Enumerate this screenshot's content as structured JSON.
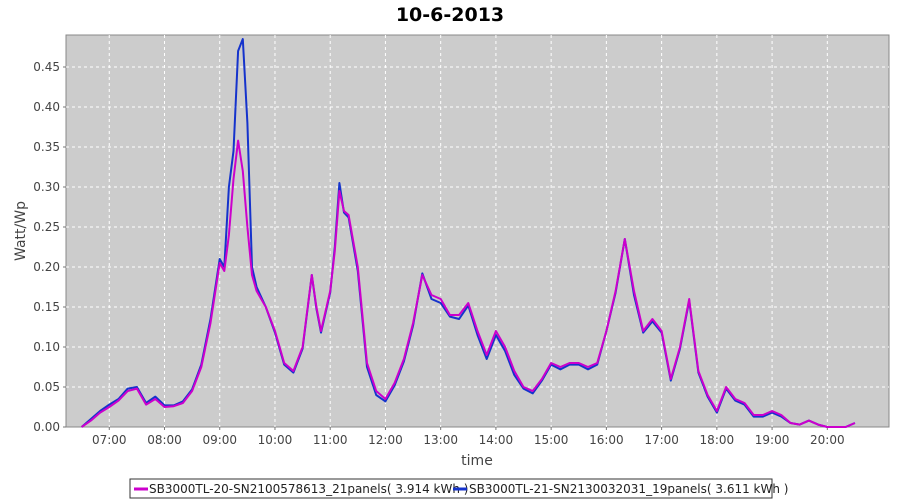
{
  "chart_data": {
    "type": "line",
    "title": "10-6-2013",
    "xlabel": "time",
    "ylabel": "Watt/Wp",
    "x_ticks": [
      "07:00",
      "08:00",
      "09:00",
      "10:00",
      "11:00",
      "12:00",
      "13:00",
      "14:00",
      "15:00",
      "16:00",
      "17:00",
      "18:00",
      "19:00",
      "20:00"
    ],
    "y_ticks": [
      "0.00",
      "0.05",
      "0.10",
      "0.15",
      "0.20",
      "0.25",
      "0.30",
      "0.35",
      "0.40",
      "0.45"
    ],
    "xlim": [
      "06:13",
      "21:07"
    ],
    "ylim": [
      0,
      0.49
    ],
    "grid": true,
    "legend_position": "bottom",
    "series": [
      {
        "name": "SB3000TL-20-SN2100578613_21panels( 3.914 kWh )",
        "color": "#cc00cc",
        "x": [
          "06:30",
          "06:40",
          "06:50",
          "07:00",
          "07:10",
          "07:20",
          "07:30",
          "07:40",
          "07:50",
          "08:00",
          "08:10",
          "08:20",
          "08:30",
          "08:40",
          "08:50",
          "09:00",
          "09:05",
          "09:10",
          "09:15",
          "09:20",
          "09:25",
          "09:30",
          "09:35",
          "09:40",
          "09:50",
          "10:00",
          "10:10",
          "10:20",
          "10:30",
          "10:40",
          "10:45",
          "10:50",
          "11:00",
          "11:05",
          "11:10",
          "11:15",
          "11:20",
          "11:30",
          "11:40",
          "11:50",
          "12:00",
          "12:10",
          "12:20",
          "12:30",
          "12:40",
          "12:50",
          "13:00",
          "13:10",
          "13:20",
          "13:30",
          "13:40",
          "13:50",
          "14:00",
          "14:10",
          "14:20",
          "14:30",
          "14:40",
          "14:50",
          "15:00",
          "15:10",
          "15:20",
          "15:30",
          "15:40",
          "15:50",
          "16:00",
          "16:10",
          "16:20",
          "16:30",
          "16:40",
          "16:50",
          "17:00",
          "17:10",
          "17:20",
          "17:30",
          "17:40",
          "17:50",
          "18:00",
          "18:10",
          "18:20",
          "18:30",
          "18:40",
          "18:50",
          "19:00",
          "19:10",
          "19:20",
          "19:30",
          "19:40",
          "19:50",
          "20:00",
          "20:10",
          "20:20",
          "20:30"
        ],
        "y": [
          0.0,
          0.008,
          0.018,
          0.025,
          0.033,
          0.045,
          0.048,
          0.028,
          0.035,
          0.025,
          0.026,
          0.03,
          0.045,
          0.075,
          0.13,
          0.205,
          0.195,
          0.24,
          0.31,
          0.358,
          0.32,
          0.25,
          0.19,
          0.17,
          0.15,
          0.12,
          0.08,
          0.07,
          0.1,
          0.19,
          0.15,
          0.12,
          0.17,
          0.22,
          0.295,
          0.27,
          0.265,
          0.2,
          0.08,
          0.045,
          0.035,
          0.055,
          0.085,
          0.13,
          0.19,
          0.165,
          0.16,
          0.14,
          0.14,
          0.155,
          0.12,
          0.09,
          0.12,
          0.1,
          0.07,
          0.05,
          0.045,
          0.06,
          0.08,
          0.075,
          0.08,
          0.08,
          0.075,
          0.08,
          0.12,
          0.17,
          0.235,
          0.17,
          0.12,
          0.135,
          0.12,
          0.06,
          0.1,
          0.16,
          0.07,
          0.04,
          0.02,
          0.05,
          0.035,
          0.03,
          0.015,
          0.015,
          0.02,
          0.015,
          0.005,
          0.003,
          0.008,
          0.003,
          0.0,
          0.0,
          0.0,
          0.005
        ]
      },
      {
        "name": "SB3000TL-21-SN2130032031_19panels( 3.611 kWh )",
        "color": "#1533cc",
        "x": [
          "06:30",
          "06:40",
          "06:50",
          "07:00",
          "07:10",
          "07:20",
          "07:30",
          "07:40",
          "07:50",
          "08:00",
          "08:10",
          "08:20",
          "08:30",
          "08:40",
          "08:50",
          "09:00",
          "09:05",
          "09:10",
          "09:15",
          "09:20",
          "09:25",
          "09:30",
          "09:35",
          "09:40",
          "09:50",
          "10:00",
          "10:10",
          "10:20",
          "10:30",
          "10:40",
          "10:45",
          "10:50",
          "11:00",
          "11:05",
          "11:10",
          "11:15",
          "11:20",
          "11:30",
          "11:40",
          "11:50",
          "12:00",
          "12:10",
          "12:20",
          "12:30",
          "12:40",
          "12:50",
          "13:00",
          "13:10",
          "13:20",
          "13:30",
          "13:40",
          "13:50",
          "14:00",
          "14:10",
          "14:20",
          "14:30",
          "14:40",
          "14:50",
          "15:00",
          "15:10",
          "15:20",
          "15:30",
          "15:40",
          "15:50",
          "16:00",
          "16:10",
          "16:20",
          "16:30",
          "16:40",
          "16:50",
          "17:00",
          "17:10",
          "17:20",
          "17:30",
          "17:40",
          "17:50",
          "18:00",
          "18:10",
          "18:20",
          "18:30",
          "18:40",
          "18:50",
          "19:00",
          "19:10",
          "19:20",
          "19:30",
          "19:40",
          "19:50",
          "20:00",
          "20:10",
          "20:20",
          "20:30"
        ],
        "y": [
          0.0,
          0.01,
          0.02,
          0.028,
          0.035,
          0.048,
          0.05,
          0.03,
          0.038,
          0.027,
          0.027,
          0.032,
          0.047,
          0.078,
          0.135,
          0.21,
          0.2,
          0.3,
          0.345,
          0.47,
          0.485,
          0.38,
          0.2,
          0.175,
          0.15,
          0.118,
          0.078,
          0.068,
          0.098,
          0.19,
          0.148,
          0.118,
          0.168,
          0.225,
          0.305,
          0.268,
          0.262,
          0.195,
          0.075,
          0.04,
          0.032,
          0.052,
          0.082,
          0.127,
          0.192,
          0.16,
          0.155,
          0.138,
          0.135,
          0.152,
          0.115,
          0.085,
          0.115,
          0.095,
          0.065,
          0.048,
          0.042,
          0.058,
          0.078,
          0.072,
          0.078,
          0.078,
          0.072,
          0.078,
          0.12,
          0.168,
          0.235,
          0.165,
          0.118,
          0.132,
          0.118,
          0.058,
          0.098,
          0.158,
          0.068,
          0.038,
          0.018,
          0.048,
          0.033,
          0.028,
          0.013,
          0.013,
          0.018,
          0.013,
          0.005,
          0.003,
          0.008,
          0.003,
          0.0,
          0.0,
          0.0,
          0.005
        ]
      }
    ]
  }
}
